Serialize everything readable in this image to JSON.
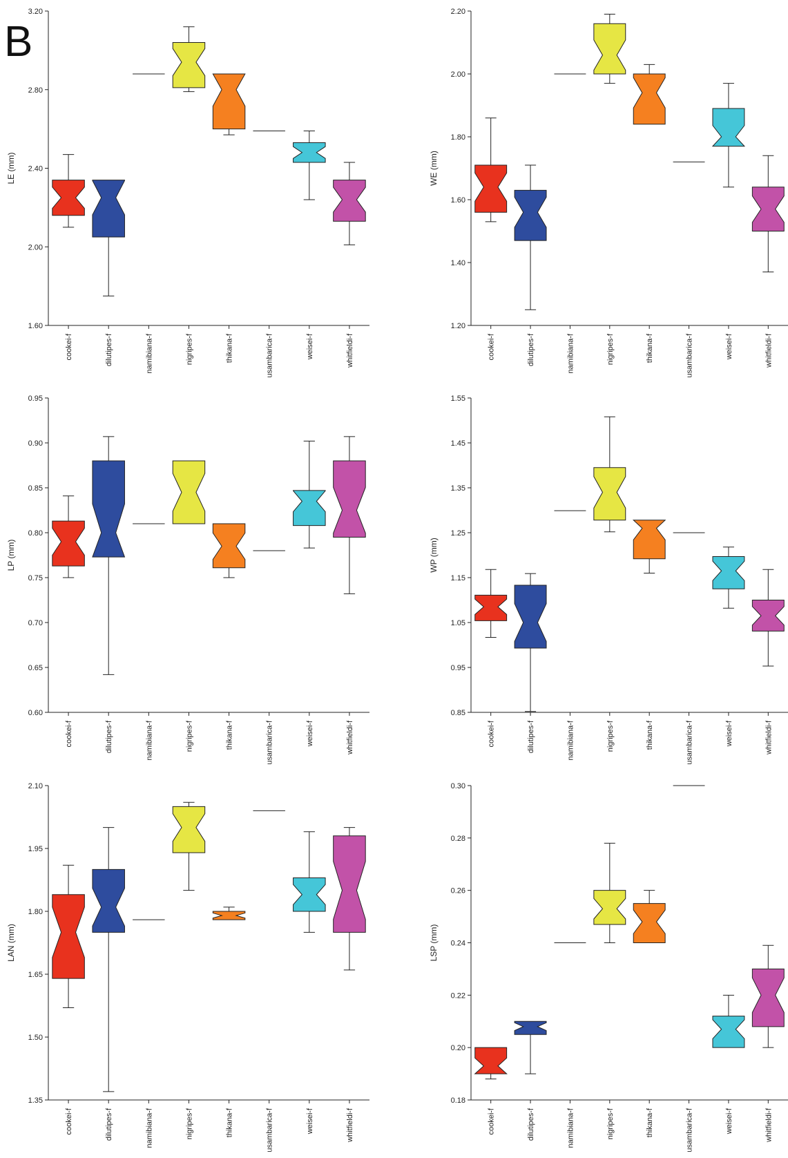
{
  "panel_label": "B",
  "chart_data": [
    {
      "type": "box",
      "ylabel": "LE (mm)",
      "ylim": [
        1.6,
        3.2
      ],
      "yticks": [
        "1.60",
        "2.00",
        "2.40",
        "2.80",
        "3.20"
      ],
      "categories": [
        "cookei-f",
        "dilutipes-f",
        "namibiana-f",
        "nigripes-f",
        "thikana-f",
        "usambarica-f",
        "weisei-f",
        "whitfieldi-f"
      ],
      "boxes": [
        {
          "whisker_low": 2.1,
          "q1": 2.16,
          "median": 2.25,
          "q3": 2.34,
          "whisker_high": 2.47
        },
        {
          "whisker_low": 1.75,
          "q1": 2.05,
          "median": 2.25,
          "q3": 2.34,
          "whisker_high": 2.34
        },
        {
          "whisker_low": 2.88,
          "q1": 2.88,
          "median": 2.88,
          "q3": 2.88,
          "whisker_high": 2.88
        },
        {
          "whisker_low": 2.79,
          "q1": 2.81,
          "median": 2.94,
          "q3": 3.04,
          "whisker_high": 3.12
        },
        {
          "whisker_low": 2.57,
          "q1": 2.6,
          "median": 2.8,
          "q3": 2.88,
          "whisker_high": 2.88
        },
        {
          "whisker_low": 2.59,
          "q1": 2.59,
          "median": 2.59,
          "q3": 2.59,
          "whisker_high": 2.59
        },
        {
          "whisker_low": 2.24,
          "q1": 2.43,
          "median": 2.48,
          "q3": 2.53,
          "whisker_high": 2.59
        },
        {
          "whisker_low": 2.01,
          "q1": 2.13,
          "median": 2.24,
          "q3": 2.34,
          "whisker_high": 2.43
        }
      ]
    },
    {
      "type": "box",
      "ylabel": "WE (mm)",
      "ylim": [
        1.2,
        2.2
      ],
      "yticks": [
        "1.20",
        "1.40",
        "1.60",
        "1.80",
        "2.00",
        "2.20"
      ],
      "categories": [
        "cookei-f",
        "dilutipes-f",
        "namibiana-f",
        "nigripes-f",
        "thikana-f",
        "usambarica-f",
        "weisei-f",
        "whitfieldi-f"
      ],
      "boxes": [
        {
          "whisker_low": 1.53,
          "q1": 1.56,
          "median": 1.64,
          "q3": 1.71,
          "whisker_high": 1.86
        },
        {
          "whisker_low": 1.25,
          "q1": 1.47,
          "median": 1.56,
          "q3": 1.63,
          "whisker_high": 1.71
        },
        {
          "whisker_low": 2.0,
          "q1": 2.0,
          "median": 2.0,
          "q3": 2.0,
          "whisker_high": 2.0
        },
        {
          "whisker_low": 1.97,
          "q1": 2.0,
          "median": 2.06,
          "q3": 2.16,
          "whisker_high": 2.19
        },
        {
          "whisker_low": 1.84,
          "q1": 1.84,
          "median": 1.94,
          "q3": 2.0,
          "whisker_high": 2.03
        },
        {
          "whisker_low": 1.72,
          "q1": 1.72,
          "median": 1.72,
          "q3": 1.72,
          "whisker_high": 1.72
        },
        {
          "whisker_low": 1.64,
          "q1": 1.77,
          "median": 1.8,
          "q3": 1.89,
          "whisker_high": 1.97
        },
        {
          "whisker_low": 1.37,
          "q1": 1.5,
          "median": 1.57,
          "q3": 1.64,
          "whisker_high": 1.74
        }
      ]
    },
    {
      "type": "box",
      "ylabel": "LP (mm)",
      "ylim": [
        0.6,
        0.95
      ],
      "yticks": [
        "0.60",
        "0.65",
        "0.70",
        "0.75",
        "0.80",
        "0.85",
        "0.90",
        "0.95"
      ],
      "categories": [
        "cookei-f",
        "dilutipes-f",
        "namibiana-f",
        "nigripes-f",
        "thikana-f",
        "usambarica-f",
        "weisei-f",
        "whitfieldi-f"
      ],
      "boxes": [
        {
          "whisker_low": 0.75,
          "q1": 0.763,
          "median": 0.79,
          "q3": 0.813,
          "whisker_high": 0.841
        },
        {
          "whisker_low": 0.642,
          "q1": 0.773,
          "median": 0.8,
          "q3": 0.88,
          "whisker_high": 0.907
        },
        {
          "whisker_low": 0.81,
          "q1": 0.81,
          "median": 0.81,
          "q3": 0.81,
          "whisker_high": 0.81
        },
        {
          "whisker_low": 0.81,
          "q1": 0.81,
          "median": 0.845,
          "q3": 0.88,
          "whisker_high": 0.88
        },
        {
          "whisker_low": 0.75,
          "q1": 0.761,
          "median": 0.785,
          "q3": 0.81,
          "whisker_high": 0.81
        },
        {
          "whisker_low": 0.78,
          "q1": 0.78,
          "median": 0.78,
          "q3": 0.78,
          "whisker_high": 0.78
        },
        {
          "whisker_low": 0.783,
          "q1": 0.808,
          "median": 0.835,
          "q3": 0.847,
          "whisker_high": 0.902
        },
        {
          "whisker_low": 0.732,
          "q1": 0.795,
          "median": 0.825,
          "q3": 0.88,
          "whisker_high": 0.907
        }
      ]
    },
    {
      "type": "box",
      "ylabel": "WP (mm)",
      "ylim": [
        0.85,
        1.55
      ],
      "yticks": [
        "0.85",
        "0.95",
        "1.05",
        "1.15",
        "1.25",
        "1.35",
        "1.45",
        "1.55"
      ],
      "categories": [
        "cookei-f",
        "dilutipes-f",
        "namibiana-f",
        "nigripes-f",
        "thikana-f",
        "usambarica-f",
        "weisei-f",
        "whitfieldi-f"
      ],
      "boxes": [
        {
          "whisker_low": 1.017,
          "q1": 1.054,
          "median": 1.085,
          "q3": 1.111,
          "whisker_high": 1.168
        },
        {
          "whisker_low": 0.852,
          "q1": 0.993,
          "median": 1.05,
          "q3": 1.133,
          "whisker_high": 1.159
        },
        {
          "whisker_low": 1.299,
          "q1": 1.299,
          "median": 1.299,
          "q3": 1.299,
          "whisker_high": 1.299
        },
        {
          "whisker_low": 1.252,
          "q1": 1.278,
          "median": 1.34,
          "q3": 1.395,
          "whisker_high": 1.508
        },
        {
          "whisker_low": 1.16,
          "q1": 1.192,
          "median": 1.26,
          "q3": 1.278,
          "whisker_high": 1.278
        },
        {
          "whisker_low": 1.25,
          "q1": 1.25,
          "median": 1.25,
          "q3": 1.25,
          "whisker_high": 1.25
        },
        {
          "whisker_low": 1.082,
          "q1": 1.125,
          "median": 1.165,
          "q3": 1.197,
          "whisker_high": 1.218
        },
        {
          "whisker_low": 0.953,
          "q1": 1.031,
          "median": 1.065,
          "q3": 1.1,
          "whisker_high": 1.168
        }
      ]
    },
    {
      "type": "box",
      "ylabel": "LAN (mm)",
      "ylim": [
        1.35,
        2.1
      ],
      "yticks": [
        "1.35",
        "1.50",
        "1.65",
        "1.80",
        "1.95",
        "2.10"
      ],
      "categories": [
        "cookei-f",
        "dilutipes-f",
        "namibiana-f",
        "nigripes-f",
        "thikana-f",
        "usambarica-f",
        "weisei-f",
        "whitfieldi-f"
      ],
      "boxes": [
        {
          "whisker_low": 1.57,
          "q1": 1.64,
          "median": 1.75,
          "q3": 1.84,
          "whisker_high": 1.91
        },
        {
          "whisker_low": 1.37,
          "q1": 1.75,
          "median": 1.81,
          "q3": 1.9,
          "whisker_high": 2.0
        },
        {
          "whisker_low": 1.78,
          "q1": 1.78,
          "median": 1.78,
          "q3": 1.78,
          "whisker_high": 1.78
        },
        {
          "whisker_low": 1.85,
          "q1": 1.94,
          "median": 2.0,
          "q3": 2.05,
          "whisker_high": 2.06
        },
        {
          "whisker_low": 1.78,
          "q1": 1.78,
          "median": 1.79,
          "q3": 1.8,
          "whisker_high": 1.81
        },
        {
          "whisker_low": 2.04,
          "q1": 2.04,
          "median": 2.04,
          "q3": 2.04,
          "whisker_high": 2.04
        },
        {
          "whisker_low": 1.75,
          "q1": 1.8,
          "median": 1.84,
          "q3": 1.88,
          "whisker_high": 1.99
        },
        {
          "whisker_low": 1.66,
          "q1": 1.75,
          "median": 1.85,
          "q3": 1.98,
          "whisker_high": 2.0
        }
      ]
    },
    {
      "type": "box",
      "ylabel": "LSP (mm)",
      "ylim": [
        0.18,
        0.3
      ],
      "yticks": [
        "0.18",
        "0.20",
        "0.22",
        "0.24",
        "0.26",
        "0.28",
        "0.30"
      ],
      "categories": [
        "cookei-f",
        "dilutipes-f",
        "namibiana-f",
        "nigripes-f",
        "thikana-f",
        "usambarica-f",
        "weisei-f",
        "whitfieldi-f"
      ],
      "boxes": [
        {
          "whisker_low": 0.188,
          "q1": 0.19,
          "median": 0.193,
          "q3": 0.2,
          "whisker_high": 0.2
        },
        {
          "whisker_low": 0.19,
          "q1": 0.205,
          "median": 0.208,
          "q3": 0.21,
          "whisker_high": 0.21
        },
        {
          "whisker_low": 0.24,
          "q1": 0.24,
          "median": 0.24,
          "q3": 0.24,
          "whisker_high": 0.24
        },
        {
          "whisker_low": 0.24,
          "q1": 0.247,
          "median": 0.253,
          "q3": 0.26,
          "whisker_high": 0.278
        },
        {
          "whisker_low": 0.24,
          "q1": 0.24,
          "median": 0.248,
          "q3": 0.255,
          "whisker_high": 0.26
        },
        {
          "whisker_low": 0.3,
          "q1": 0.3,
          "median": 0.3,
          "q3": 0.3,
          "whisker_high": 0.3
        },
        {
          "whisker_low": 0.2,
          "q1": 0.2,
          "median": 0.207,
          "q3": 0.212,
          "whisker_high": 0.22
        },
        {
          "whisker_low": 0.2,
          "q1": 0.208,
          "median": 0.22,
          "q3": 0.23,
          "whisker_high": 0.239
        }
      ]
    }
  ],
  "colors": [
    "#e8321e",
    "#2e4c9e",
    "#1a1a1a",
    "#e6e644",
    "#f58020",
    "#1a1a1a",
    "#45c6d8",
    "#c252a8"
  ]
}
